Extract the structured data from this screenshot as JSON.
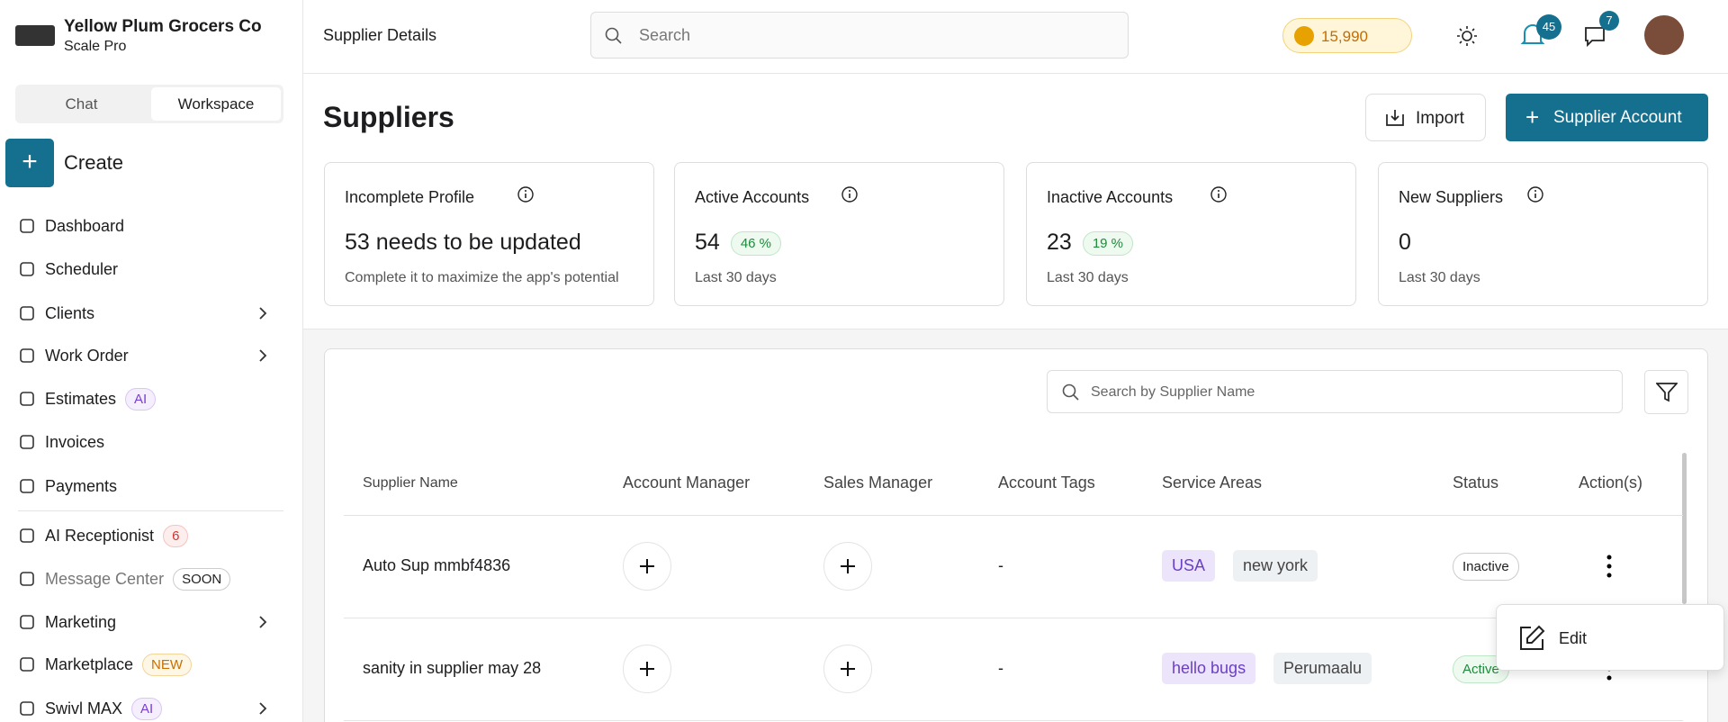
{
  "org": {
    "name": "Yellow Plum Grocers Co",
    "plan": "Scale Pro"
  },
  "tabs": [
    "Chat",
    "Workspace"
  ],
  "create": "Create",
  "nav": [
    {
      "label": "Dashboard"
    },
    {
      "label": "Scheduler"
    },
    {
      "label": "Clients",
      "submenu": true
    },
    {
      "label": "Work Order",
      "submenu": true
    },
    {
      "label": "Estimates",
      "badge": {
        "text": "AI",
        "tone": "purple"
      }
    },
    {
      "label": "Invoices"
    },
    {
      "label": "Payments"
    },
    {
      "label": "AI Receptionist",
      "badge": {
        "text": "6",
        "tone": "red"
      }
    },
    {
      "label": "Message Center",
      "muted": true,
      "badge": {
        "text": "SOON",
        "tone": "gray"
      }
    },
    {
      "label": "Marketing",
      "submenu": true
    },
    {
      "label": "Marketplace",
      "badge": {
        "text": "NEW",
        "tone": "orange"
      }
    },
    {
      "label": "Swivl MAX",
      "submenu": true,
      "badge": {
        "text": "AI",
        "tone": "purple"
      }
    }
  ],
  "header": {
    "title": "Supplier Details",
    "search": "Search",
    "coins": "15,990",
    "notifications": 45,
    "messages": 7
  },
  "page": {
    "title": "Suppliers",
    "import": "Import",
    "add": "Supplier Account"
  },
  "stats": [
    {
      "title": "Incomplete Profile",
      "value": "53 needs to be updated",
      "note": "Complete it to maximize the app's potential"
    },
    {
      "title": "Active Accounts",
      "value": 54,
      "change": "46 %",
      "note": "Last 30 days"
    },
    {
      "title": "Inactive Accounts",
      "value": 23,
      "change": "19 %",
      "note": "Last 30 days"
    },
    {
      "title": "New Suppliers",
      "value": 0,
      "note": "Last 30 days"
    }
  ],
  "table": {
    "search": "Search by Supplier Name",
    "columns": [
      "Supplier Name",
      "Account Manager",
      "Sales Manager",
      "Account Tags",
      "Service Areas",
      "Status",
      "Action(s)"
    ],
    "rows": [
      {
        "name": "Auto Sup mmbf4836",
        "tags": "-",
        "areas": [
          "USA",
          "new york"
        ],
        "status": "Inactive"
      },
      {
        "name": "sanity in supplier may 28",
        "tags": "-",
        "areas": [
          "hello bugs",
          "Perumaalu"
        ],
        "status": "Active"
      }
    ]
  },
  "menu": {
    "edit": "Edit"
  }
}
